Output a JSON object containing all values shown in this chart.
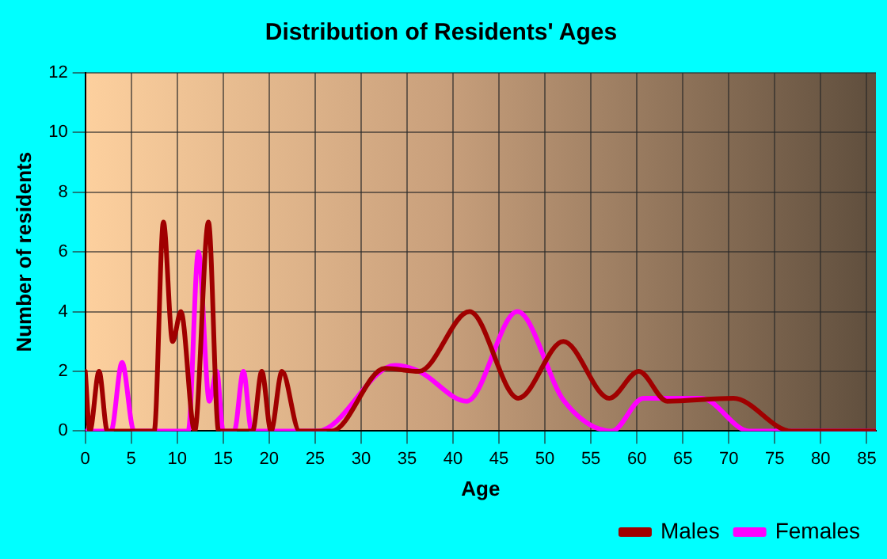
{
  "chart_data": {
    "type": "line",
    "title": "Distribution of Residents' Ages",
    "xlabel": "Age",
    "ylabel": "Number of residents",
    "xlim": [
      0,
      86
    ],
    "xticks": [
      0,
      5,
      10,
      15,
      20,
      25,
      30,
      35,
      40,
      45,
      50,
      55,
      60,
      65,
      70,
      75,
      80,
      85
    ],
    "ylim": [
      0,
      12
    ],
    "yticks": [
      0,
      2,
      4,
      6,
      8,
      10,
      12
    ],
    "grid": true,
    "legend": "bottom",
    "marker": "none",
    "line_style": "solid",
    "series": [
      {
        "name": "Males",
        "color": "#a00000",
        "x": [
          0,
          0.5,
          1.5,
          2.4,
          7.5,
          8.5,
          9.5,
          10.4,
          11.9,
          13.4,
          14.5,
          18.2,
          19.2,
          20.2,
          21.4,
          23.3,
          26.8,
          32.6,
          36.3,
          41.8,
          47.1,
          52,
          57,
          60.2,
          63.3,
          70.5,
          76.8,
          86
        ],
        "values": [
          2,
          0,
          2,
          0,
          0,
          7,
          3,
          4,
          0,
          7,
          0,
          0,
          2,
          0,
          2,
          0,
          0,
          2.1,
          2,
          4,
          1.1,
          3,
          1.1,
          2,
          1,
          1.1,
          0,
          0
        ]
      },
      {
        "name": "Females",
        "color": "#ff00ff",
        "x": [
          0,
          2.8,
          4,
          5.3,
          11.2,
          12.3,
          13.5,
          14.3,
          15,
          16.2,
          17.2,
          18.1,
          25.3,
          33.7,
          36.3,
          41.5,
          47,
          52.1,
          57.3,
          60.7,
          67,
          72.2,
          86
        ],
        "values": [
          0,
          0,
          2.3,
          0,
          0,
          6,
          1,
          2,
          0,
          0,
          2,
          0,
          0,
          2.2,
          2,
          1,
          4,
          1,
          0,
          1.1,
          1.1,
          0,
          0
        ]
      }
    ]
  }
}
